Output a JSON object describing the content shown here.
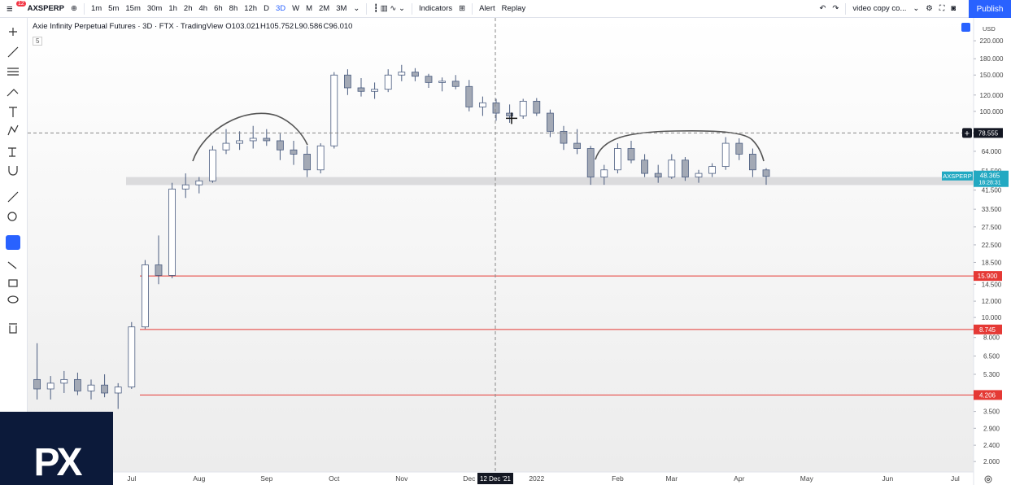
{
  "toolbar": {
    "symbol": "AXSPERP",
    "badge": "12",
    "intervals": [
      "1m",
      "5m",
      "15m",
      "30m",
      "1h",
      "2h",
      "4h",
      "6h",
      "8h",
      "12h",
      "D",
      "3D",
      "W",
      "M",
      "2M",
      "3M"
    ],
    "indicators": "Indicators",
    "alert": "Alert",
    "replay": "Replay",
    "layout": "video copy co...",
    "publish": "Publish"
  },
  "legend": {
    "title": "Axie Infinity Perpetual Futures · 3D · FTX · TradingView",
    "ohlc": [
      "O103.021",
      "H105.752",
      "L90.586",
      "C96.010"
    ],
    "badge": "5"
  },
  "currency": "USD",
  "watermark": "PX",
  "chart_data": {
    "type": "candlestick",
    "categories": [
      null,
      null,
      null,
      null,
      null,
      null,
      null,
      null,
      "Jul",
      null,
      null,
      null,
      null,
      "Aug",
      null,
      null,
      null,
      null,
      "Sep",
      null,
      null,
      null,
      null,
      "Oct",
      null,
      null,
      null,
      null,
      "Nov",
      null,
      null,
      null,
      null,
      "Dec",
      null,
      null,
      null,
      null,
      "2022",
      null,
      null,
      null,
      null,
      null,
      "Feb",
      null,
      null,
      null,
      "Mar",
      null,
      null,
      null,
      null,
      "Apr",
      null,
      null,
      null,
      null,
      "May",
      null,
      null,
      null,
      null,
      null,
      "Jun",
      null,
      null,
      null,
      null,
      "Jul"
    ],
    "open": [
      null,
      5.0,
      4.5,
      4.8,
      5.0,
      4.4,
      4.7,
      4.3,
      4.6,
      9.0,
      18,
      16,
      42,
      44,
      46,
      65,
      70,
      72,
      74,
      72,
      65,
      62,
      52,
      68,
      150,
      130,
      125,
      128,
      150,
      155,
      148,
      138,
      140,
      132,
      105,
      110,
      98,
      95,
      112,
      98,
      80,
      70,
      66,
      48,
      52,
      66,
      58,
      50,
      48,
      58,
      48,
      50,
      54,
      70,
      62,
      52,
      null,
      null,
      null,
      null,
      null,
      null,
      null,
      null,
      null,
      null,
      null,
      null,
      null,
      null
    ],
    "high": [
      null,
      7.5,
      5.2,
      5.5,
      5.4,
      5.0,
      5.3,
      4.8,
      9.5,
      19,
      25,
      45,
      50,
      48,
      68,
      82,
      80,
      85,
      82,
      78,
      72,
      68,
      70,
      155,
      160,
      145,
      138,
      160,
      168,
      162,
      152,
      146,
      150,
      142,
      118,
      115,
      108,
      115,
      116,
      102,
      85,
      82,
      68,
      55,
      70,
      72,
      62,
      55,
      62,
      60,
      52,
      56,
      75,
      74,
      66,
      53,
      null,
      null,
      null,
      null,
      null,
      null,
      null,
      null,
      null,
      null,
      null,
      null,
      null,
      null
    ],
    "low": [
      null,
      4.0,
      4.0,
      4.3,
      4.2,
      4.0,
      4.1,
      3.6,
      4.5,
      8.8,
      14.5,
      15.5,
      38,
      40,
      45,
      62,
      65,
      66,
      68,
      58,
      55,
      48,
      50,
      66,
      120,
      118,
      115,
      124,
      140,
      140,
      130,
      125,
      128,
      100,
      95,
      90,
      88,
      92,
      95,
      75,
      65,
      62,
      44,
      44,
      50,
      56,
      48,
      45,
      47,
      46,
      45,
      48,
      52,
      58,
      48,
      44,
      null,
      null,
      null,
      null,
      null,
      null,
      null,
      null,
      null,
      null,
      null,
      null,
      null,
      null
    ],
    "close": [
      null,
      4.5,
      4.8,
      5.0,
      4.4,
      4.7,
      4.3,
      4.6,
      9.0,
      18,
      16,
      42,
      44,
      46,
      65,
      70,
      72,
      74,
      72,
      65,
      62,
      52,
      68,
      150,
      130,
      125,
      128,
      150,
      155,
      148,
      138,
      140,
      132,
      105,
      110,
      98,
      95,
      112,
      98,
      80,
      70,
      66,
      48,
      52,
      66,
      58,
      50,
      48,
      58,
      48,
      50,
      54,
      70,
      62,
      52,
      48.365,
      null,
      null,
      null,
      null,
      null,
      null,
      null,
      null,
      null,
      null,
      null,
      null,
      null,
      null
    ],
    "up_color": "#ffffff",
    "down_color": "#a3a9b5",
    "border_color": "#4b5d80",
    "log_scale": true,
    "grid": false,
    "ylim": [
      1.78,
      284
    ],
    "yticks": [
      {
        "value": 220,
        "label": "220.000"
      },
      {
        "value": 180,
        "label": "180.000"
      },
      {
        "value": 150,
        "label": "150.000"
      },
      {
        "value": 120,
        "label": "120.000"
      },
      {
        "value": 100,
        "label": "100.000"
      },
      {
        "value": 64,
        "label": "64.000"
      },
      {
        "value": 51.5,
        "label": "51.500"
      },
      {
        "value": 41.5,
        "label": "41.500"
      },
      {
        "value": 33.5,
        "label": "33.500"
      },
      {
        "value": 27.5,
        "label": "27.500"
      },
      {
        "value": 22.5,
        "label": "22.500"
      },
      {
        "value": 18.5,
        "label": "18.500"
      },
      {
        "value": 14.5,
        "label": "14.500"
      },
      {
        "value": 12,
        "label": "12.000"
      },
      {
        "value": 10,
        "label": "10.000"
      },
      {
        "value": 8,
        "label": "8.000"
      },
      {
        "value": 6.5,
        "label": "6.500"
      },
      {
        "value": 5.3,
        "label": "5.300"
      },
      {
        "value": 3.5,
        "label": "3.500"
      },
      {
        "value": 2.9,
        "label": "2.900"
      },
      {
        "value": 2.4,
        "label": "2.400"
      },
      {
        "value": 2,
        "label": "2.000"
      }
    ],
    "hlines": [
      {
        "value": 15.9,
        "label": "15.900"
      },
      {
        "value": 8.745,
        "label": "8.745"
      },
      {
        "value": 4.206,
        "label": "4.206"
      }
    ],
    "line_color": "#e53935",
    "zone": [
      43.9,
      48.0
    ],
    "crosshair": {
      "value": 78.555,
      "label": "78.555",
      "x_label": "12 Dec '21"
    },
    "last_price": {
      "value": 48.365,
      "label": "48.365",
      "countdown": "18:28:31",
      "color": "#22a9c2"
    }
  }
}
